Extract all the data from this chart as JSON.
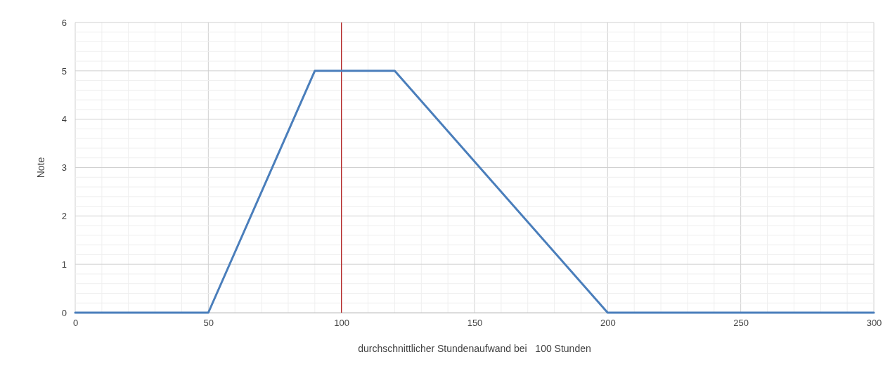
{
  "chart_data": {
    "type": "line",
    "xlabel": "durchschnittlicher Stundenaufwand bei   100 Stunden",
    "ylabel": "Note",
    "x": [
      0,
      50,
      90,
      120,
      200,
      300
    ],
    "series": [
      {
        "color": "#4a7ebb",
        "values": [
          0,
          0,
          5,
          5,
          0,
          0
        ]
      }
    ],
    "xlim": [
      0,
      300
    ],
    "xticks": [
      0,
      50,
      100,
      150,
      200,
      250,
      300
    ],
    "ylim": [
      0,
      6
    ],
    "yticks": [
      0,
      1,
      2,
      3,
      4,
      5,
      6
    ],
    "grid": true,
    "marker": "none",
    "line_style": "solid",
    "ref_lines": [
      {
        "axis": "x",
        "value": 100,
        "color": "#b22222"
      }
    ]
  }
}
